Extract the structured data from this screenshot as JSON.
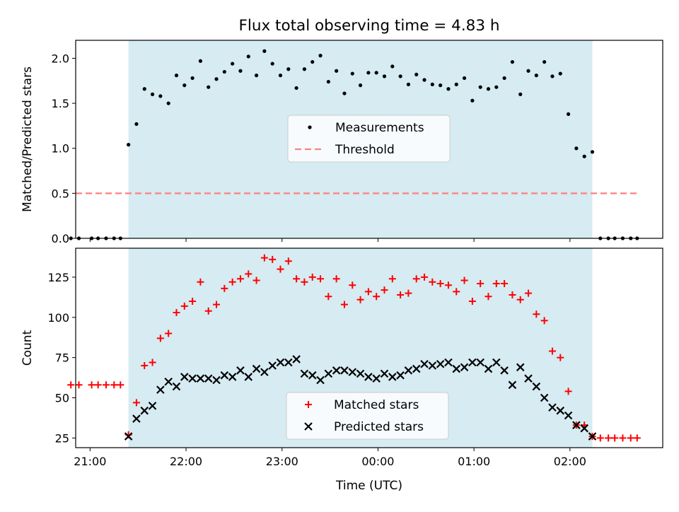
{
  "title": "Flux total observing time = 4.83 h",
  "colors": {
    "observing_window": "#add8e6",
    "measurements": "#000000",
    "threshold": "#ff7f7f",
    "matched": "#ff0000",
    "predicted": "#000000"
  },
  "chart_data": [
    {
      "type": "scatter",
      "ylabel": "Matched/Predicted stars",
      "xlim": [
        "20:51",
        "02:58"
      ],
      "ylim": [
        0,
        2.2
      ],
      "yticks": [
        "0.0",
        "0.5",
        "1.0",
        "1.5",
        "2.0"
      ],
      "shaded_interval": [
        "21:24",
        "02:14"
      ],
      "legend_position": "center",
      "series": [
        {
          "name": "Measurements",
          "marker": "dot",
          "points": [
            [
              "20:48",
              0
            ],
            [
              "20:53",
              0
            ],
            [
              "21:01",
              0
            ],
            [
              "21:05",
              0
            ],
            [
              "21:10",
              0
            ],
            [
              "21:15",
              0
            ],
            [
              "21:19",
              0
            ],
            [
              "21:24",
              1.04
            ],
            [
              "21:29",
              1.27
            ],
            [
              "21:34",
              1.66
            ],
            [
              "21:39",
              1.6
            ],
            [
              "21:44",
              1.58
            ],
            [
              "21:49",
              1.5
            ],
            [
              "21:54",
              1.81
            ],
            [
              "21:59",
              1.7
            ],
            [
              "22:04",
              1.78
            ],
            [
              "22:09",
              1.97
            ],
            [
              "22:14",
              1.68
            ],
            [
              "22:19",
              1.77
            ],
            [
              "22:24",
              1.85
            ],
            [
              "22:29",
              1.94
            ],
            [
              "22:34",
              1.86
            ],
            [
              "22:39",
              2.02
            ],
            [
              "22:44",
              1.81
            ],
            [
              "22:49",
              2.08
            ],
            [
              "22:54",
              1.94
            ],
            [
              "22:59",
              1.81
            ],
            [
              "23:04",
              1.88
            ],
            [
              "23:09",
              1.67
            ],
            [
              "23:14",
              1.88
            ],
            [
              "23:19",
              1.96
            ],
            [
              "23:24",
              2.03
            ],
            [
              "23:29",
              1.74
            ],
            [
              "23:34",
              1.86
            ],
            [
              "23:39",
              1.61
            ],
            [
              "23:44",
              1.83
            ],
            [
              "23:49",
              1.7
            ],
            [
              "23:54",
              1.84
            ],
            [
              "23:59",
              1.84
            ],
            [
              "00:04",
              1.8
            ],
            [
              "00:09",
              1.91
            ],
            [
              "00:14",
              1.8
            ],
            [
              "00:19",
              1.71
            ],
            [
              "00:24",
              1.82
            ],
            [
              "00:29",
              1.76
            ],
            [
              "00:34",
              1.71
            ],
            [
              "00:39",
              1.7
            ],
            [
              "00:44",
              1.66
            ],
            [
              "00:49",
              1.71
            ],
            [
              "00:54",
              1.78
            ],
            [
              "00:59",
              1.53
            ],
            [
              "01:04",
              1.68
            ],
            [
              "01:09",
              1.66
            ],
            [
              "01:14",
              1.68
            ],
            [
              "01:19",
              1.78
            ],
            [
              "01:24",
              1.96
            ],
            [
              "01:29",
              1.6
            ],
            [
              "01:34",
              1.86
            ],
            [
              "01:39",
              1.81
            ],
            [
              "01:44",
              1.96
            ],
            [
              "01:49",
              1.8
            ],
            [
              "01:54",
              1.83
            ],
            [
              "01:59",
              1.38
            ],
            [
              "02:04",
              1.0
            ],
            [
              "02:09",
              0.91
            ],
            [
              "02:14",
              0.96
            ],
            [
              "02:19",
              0
            ],
            [
              "02:24",
              0
            ],
            [
              "02:28",
              0
            ],
            [
              "02:33",
              0
            ],
            [
              "02:38",
              0
            ],
            [
              "02:42",
              0
            ]
          ]
        },
        {
          "name": "Threshold",
          "style": "dashed",
          "points": [
            [
              "20:51",
              0.5
            ],
            [
              "02:42",
              0.5
            ]
          ]
        }
      ]
    },
    {
      "type": "scatter",
      "xlabel": "Time (UTC)",
      "ylabel": "Count",
      "xlim": [
        "20:51",
        "02:58"
      ],
      "ylim": [
        19,
        143
      ],
      "xticks": [
        "21:00",
        "22:00",
        "23:00",
        "00:00",
        "01:00",
        "02:00"
      ],
      "yticks": [
        "25",
        "50",
        "75",
        "100",
        "125"
      ],
      "shaded_interval": [
        "21:24",
        "02:14"
      ],
      "legend_position": "lower center",
      "series": [
        {
          "name": "Matched stars",
          "marker": "plus",
          "points": [
            [
              "20:48",
              58
            ],
            [
              "20:53",
              58
            ],
            [
              "21:01",
              58
            ],
            [
              "21:05",
              58
            ],
            [
              "21:10",
              58
            ],
            [
              "21:15",
              58
            ],
            [
              "21:19",
              58
            ],
            [
              "21:24",
              27
            ],
            [
              "21:29",
              47
            ],
            [
              "21:34",
              70
            ],
            [
              "21:39",
              72
            ],
            [
              "21:44",
              87
            ],
            [
              "21:49",
              90
            ],
            [
              "21:54",
              103
            ],
            [
              "21:59",
              107
            ],
            [
              "22:04",
              110
            ],
            [
              "22:09",
              122
            ],
            [
              "22:14",
              104
            ],
            [
              "22:19",
              108
            ],
            [
              "22:24",
              118
            ],
            [
              "22:29",
              122
            ],
            [
              "22:34",
              124
            ],
            [
              "22:39",
              127
            ],
            [
              "22:44",
              123
            ],
            [
              "22:49",
              137
            ],
            [
              "22:54",
              136
            ],
            [
              "22:59",
              130
            ],
            [
              "23:04",
              135
            ],
            [
              "23:09",
              124
            ],
            [
              "23:14",
              122
            ],
            [
              "23:19",
              125
            ],
            [
              "23:24",
              124
            ],
            [
              "23:29",
              113
            ],
            [
              "23:34",
              124
            ],
            [
              "23:39",
              108
            ],
            [
              "23:44",
              120
            ],
            [
              "23:49",
              111
            ],
            [
              "23:54",
              116
            ],
            [
              "23:59",
              113
            ],
            [
              "00:04",
              117
            ],
            [
              "00:09",
              124
            ],
            [
              "00:14",
              114
            ],
            [
              "00:19",
              115
            ],
            [
              "00:24",
              124
            ],
            [
              "00:29",
              125
            ],
            [
              "00:34",
              122
            ],
            [
              "00:39",
              121
            ],
            [
              "00:44",
              120
            ],
            [
              "00:49",
              116
            ],
            [
              "00:54",
              123
            ],
            [
              "00:59",
              110
            ],
            [
              "01:04",
              121
            ],
            [
              "01:09",
              113
            ],
            [
              "01:14",
              121
            ],
            [
              "01:19",
              121
            ],
            [
              "01:24",
              114
            ],
            [
              "01:29",
              111
            ],
            [
              "01:34",
              115
            ],
            [
              "01:39",
              102
            ],
            [
              "01:44",
              98
            ],
            [
              "01:49",
              79
            ],
            [
              "01:54",
              75
            ],
            [
              "01:59",
              54
            ],
            [
              "02:04",
              33
            ],
            [
              "02:09",
              33
            ],
            [
              "02:14",
              26
            ],
            [
              "02:19",
              25
            ],
            [
              "02:24",
              25
            ],
            [
              "02:28",
              25
            ],
            [
              "02:33",
              25
            ],
            [
              "02:38",
              25
            ],
            [
              "02:42",
              25
            ]
          ]
        },
        {
          "name": "Predicted stars",
          "marker": "x",
          "points": [
            [
              "21:24",
              26
            ],
            [
              "21:29",
              37
            ],
            [
              "21:34",
              42
            ],
            [
              "21:39",
              45
            ],
            [
              "21:44",
              55
            ],
            [
              "21:49",
              60
            ],
            [
              "21:54",
              57
            ],
            [
              "21:59",
              63
            ],
            [
              "22:04",
              62
            ],
            [
              "22:09",
              62
            ],
            [
              "22:14",
              62
            ],
            [
              "22:19",
              61
            ],
            [
              "22:24",
              64
            ],
            [
              "22:29",
              63
            ],
            [
              "22:34",
              67
            ],
            [
              "22:39",
              63
            ],
            [
              "22:44",
              68
            ],
            [
              "22:49",
              66
            ],
            [
              "22:54",
              70
            ],
            [
              "22:59",
              72
            ],
            [
              "23:04",
              72
            ],
            [
              "23:09",
              74
            ],
            [
              "23:14",
              65
            ],
            [
              "23:19",
              64
            ],
            [
              "23:24",
              61
            ],
            [
              "23:29",
              65
            ],
            [
              "23:34",
              67
            ],
            [
              "23:39",
              67
            ],
            [
              "23:44",
              66
            ],
            [
              "23:49",
              65
            ],
            [
              "23:54",
              63
            ],
            [
              "23:59",
              62
            ],
            [
              "00:04",
              65
            ],
            [
              "00:09",
              63
            ],
            [
              "00:14",
              64
            ],
            [
              "00:19",
              67
            ],
            [
              "00:24",
              68
            ],
            [
              "00:29",
              71
            ],
            [
              "00:34",
              70
            ],
            [
              "00:39",
              71
            ],
            [
              "00:44",
              72
            ],
            [
              "00:49",
              68
            ],
            [
              "00:54",
              69
            ],
            [
              "00:59",
              72
            ],
            [
              "01:04",
              72
            ],
            [
              "01:09",
              68
            ],
            [
              "01:14",
              72
            ],
            [
              "01:19",
              67
            ],
            [
              "01:24",
              58
            ],
            [
              "01:29",
              69
            ],
            [
              "01:34",
              62
            ],
            [
              "01:39",
              57
            ],
            [
              "01:44",
              50
            ],
            [
              "01:49",
              44
            ],
            [
              "01:54",
              42
            ],
            [
              "01:59",
              39
            ],
            [
              "02:04",
              33
            ],
            [
              "02:09",
              31
            ],
            [
              "02:14",
              26
            ]
          ]
        }
      ]
    }
  ]
}
